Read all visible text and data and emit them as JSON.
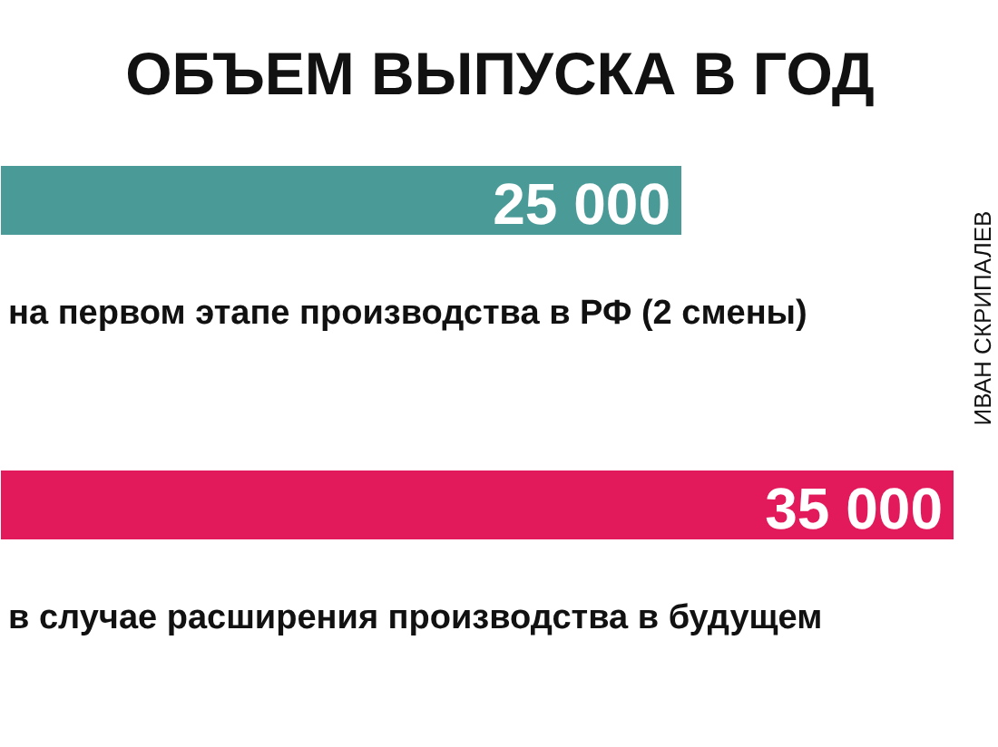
{
  "chart_data": {
    "type": "bar",
    "orientation": "horizontal",
    "title": "ОБЪЕМ ВЫПУСКА В ГОД",
    "categories": [
      "на первом этапе производства в РФ (2 смены)",
      "в случае расширения производства в будущем"
    ],
    "values": [
      25000,
      35000
    ],
    "colors": [
      "#4a9a98",
      "#e2195b"
    ],
    "data_labels": true,
    "annotations": [
      "ИВАН СКРИПАЛЕВ"
    ]
  }
}
